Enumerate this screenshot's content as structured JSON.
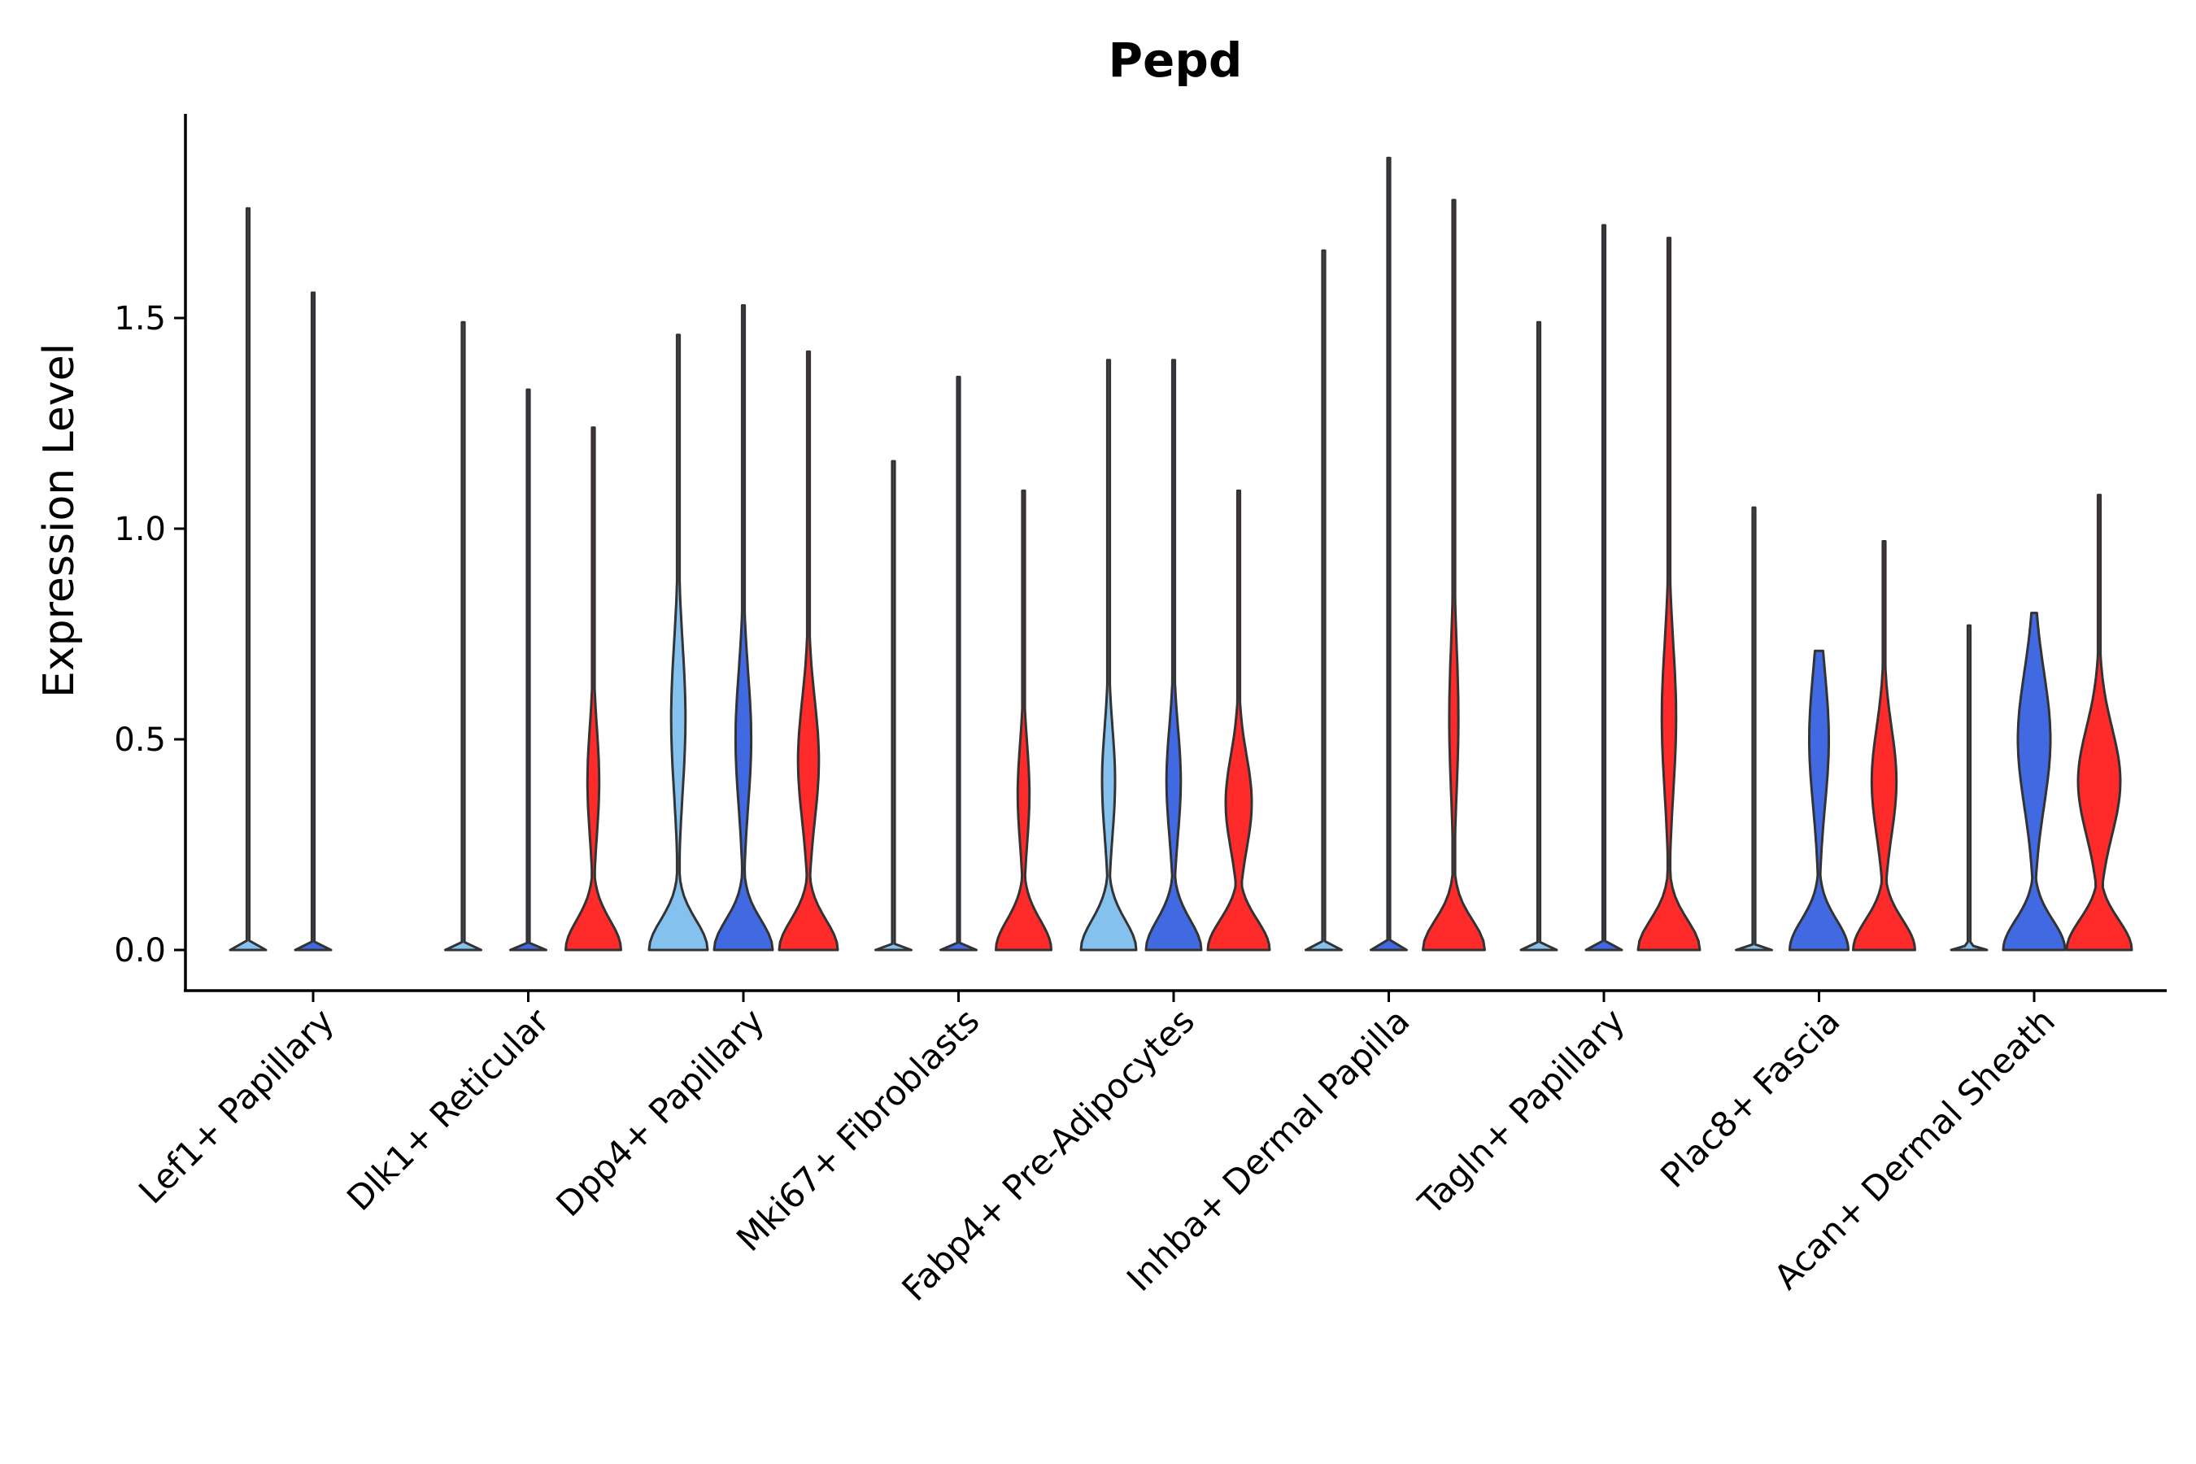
{
  "chart_data": {
    "type": "violin",
    "title": "Pepd",
    "xlabel": "",
    "ylabel": "Expression Level",
    "ylim": [
      -0.1,
      1.95
    ],
    "yticks": [
      0.0,
      0.5,
      1.0,
      1.5
    ],
    "ytick_labels": [
      "0.0",
      "0.5",
      "1.0",
      "1.5"
    ],
    "series_colors": [
      "#85C1EE",
      "#4169E1",
      "#FF2A2A"
    ],
    "categories": [
      {
        "name": "Lef1+ Papillary",
        "violins": [
          {
            "group": 0,
            "max": 1.76,
            "shape": "flat"
          },
          {
            "group": 1,
            "max": 1.56,
            "shape": "flat"
          }
        ]
      },
      {
        "name": "Dlk1+ Reticular",
        "violins": [
          {
            "group": 0,
            "max": 1.49,
            "shape": "flat"
          },
          {
            "group": 1,
            "max": 1.33,
            "shape": "flat"
          },
          {
            "group": 2,
            "max": 1.24,
            "shape": "bimodal",
            "base_width": 0.85,
            "mode": 0.4,
            "mode_width": 0.18
          }
        ]
      },
      {
        "name": "Dpp4+ Papillary",
        "violins": [
          {
            "group": 0,
            "max": 1.46,
            "shape": "bimodal",
            "base_width": 0.9,
            "mode": 0.55,
            "mode_width": 0.22
          },
          {
            "group": 1,
            "max": 1.53,
            "shape": "bimodal",
            "base_width": 0.9,
            "mode": 0.5,
            "mode_width": 0.24
          },
          {
            "group": 2,
            "max": 1.42,
            "shape": "bimodal",
            "base_width": 0.9,
            "mode": 0.45,
            "mode_width": 0.32
          }
        ]
      },
      {
        "name": "Mki67+ Fibroblasts",
        "violins": [
          {
            "group": 0,
            "max": 1.16,
            "shape": "flat"
          },
          {
            "group": 1,
            "max": 1.36,
            "shape": "flat"
          },
          {
            "group": 2,
            "max": 1.09,
            "shape": "bimodal",
            "base_width": 0.85,
            "mode": 0.37,
            "mode_width": 0.18
          }
        ]
      },
      {
        "name": "Fabp4+ Pre-Adipocytes",
        "violins": [
          {
            "group": 0,
            "max": 1.4,
            "shape": "bimodal",
            "base_width": 0.85,
            "mode": 0.4,
            "mode_width": 0.2
          },
          {
            "group": 1,
            "max": 1.4,
            "shape": "bimodal",
            "base_width": 0.85,
            "mode": 0.4,
            "mode_width": 0.22
          },
          {
            "group": 2,
            "max": 1.09,
            "shape": "bimodal",
            "base_width": 0.95,
            "mode": 0.35,
            "mode_width": 0.4
          }
        ]
      },
      {
        "name": "Inhba+ Dermal Papilla",
        "violins": [
          {
            "group": 0,
            "max": 1.66,
            "shape": "flat"
          },
          {
            "group": 1,
            "max": 1.88,
            "shape": "flat"
          },
          {
            "group": 2,
            "max": 1.78,
            "shape": "bimodal",
            "base_width": 0.95,
            "mode": 0.55,
            "mode_width": 0.14
          }
        ]
      },
      {
        "name": "Tagln+ Papillary",
        "violins": [
          {
            "group": 0,
            "max": 1.49,
            "shape": "flat"
          },
          {
            "group": 1,
            "max": 1.72,
            "shape": "flat"
          },
          {
            "group": 2,
            "max": 1.69,
            "shape": "bimodal",
            "base_width": 0.95,
            "mode": 0.55,
            "mode_width": 0.22
          }
        ]
      },
      {
        "name": "Plac8+ Fascia",
        "violins": [
          {
            "group": 0,
            "max": 1.05,
            "shape": "flat"
          },
          {
            "group": 1,
            "max": 0.71,
            "shape": "bimodal",
            "base_width": 0.9,
            "mode": 0.5,
            "mode_width": 0.3
          },
          {
            "group": 2,
            "max": 0.97,
            "shape": "bimodal",
            "base_width": 0.95,
            "mode": 0.4,
            "mode_width": 0.38
          }
        ]
      },
      {
        "name": "Acan+ Dermal Sheath",
        "violins": [
          {
            "group": 0,
            "max": 0.77,
            "shape": "flat"
          },
          {
            "group": 1,
            "max": 0.8,
            "shape": "bimodal",
            "base_width": 0.95,
            "mode": 0.5,
            "mode_width": 0.5
          },
          {
            "group": 2,
            "max": 1.08,
            "shape": "bimodal",
            "base_width": 1.0,
            "mode": 0.4,
            "mode_width": 0.65
          }
        ]
      }
    ]
  }
}
